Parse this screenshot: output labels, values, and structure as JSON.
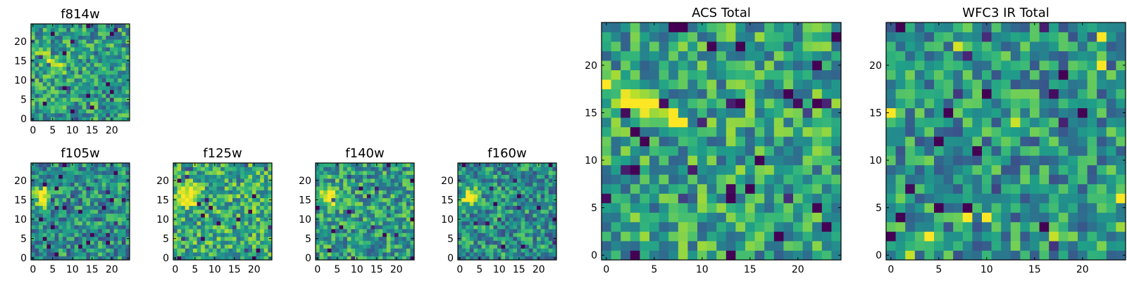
{
  "figure": {
    "title": ""
  },
  "chart_data": [
    {
      "type": "heatmap",
      "title": "f814w",
      "size": 25,
      "seed": 11,
      "xticks": [
        0,
        5,
        10,
        15,
        20
      ],
      "yticks": [
        0,
        5,
        10,
        15,
        20
      ],
      "xlim": [
        0,
        25
      ],
      "ylim": [
        0,
        25
      ],
      "grid": false,
      "legend": "none",
      "colormap": "viridis",
      "feature": "diagonal-streak",
      "base_level": 0.55
    },
    {
      "type": "heatmap",
      "title": "f105w",
      "size": 25,
      "seed": 23,
      "xticks": [
        0,
        5,
        10,
        15,
        20
      ],
      "yticks": [
        0,
        5,
        10,
        15,
        20
      ],
      "xlim": [
        0,
        25
      ],
      "ylim": [
        0,
        25
      ],
      "grid": false,
      "legend": "none",
      "colormap": "viridis",
      "feature": "bright-blob",
      "base_level": 0.5
    },
    {
      "type": "heatmap",
      "title": "f125w",
      "size": 25,
      "seed": 37,
      "xticks": [
        0,
        5,
        10,
        15,
        20
      ],
      "yticks": [
        0,
        5,
        10,
        15,
        20
      ],
      "xlim": [
        0,
        25
      ],
      "ylim": [
        0,
        25
      ],
      "grid": false,
      "legend": "none",
      "colormap": "viridis",
      "feature": "bright-blob",
      "base_level": 0.62
    },
    {
      "type": "heatmap",
      "title": "f140w",
      "size": 25,
      "seed": 41,
      "xticks": [
        0,
        5,
        10,
        15,
        20
      ],
      "yticks": [
        0,
        5,
        10,
        15,
        20
      ],
      "xlim": [
        0,
        25
      ],
      "ylim": [
        0,
        25
      ],
      "grid": false,
      "legend": "none",
      "colormap": "viridis",
      "feature": "bright-blob",
      "base_level": 0.55
    },
    {
      "type": "heatmap",
      "title": "f160w",
      "size": 25,
      "seed": 53,
      "xticks": [
        0,
        5,
        10,
        15,
        20
      ],
      "yticks": [
        0,
        5,
        10,
        15,
        20
      ],
      "xlim": [
        0,
        25
      ],
      "ylim": [
        0,
        25
      ],
      "grid": false,
      "legend": "none",
      "colormap": "viridis",
      "feature": "bright-blob",
      "base_level": 0.5
    },
    {
      "type": "heatmap",
      "title": "ACS Total",
      "size": 25,
      "seed": 67,
      "xticks": [
        0,
        5,
        10,
        15,
        20
      ],
      "yticks": [
        0,
        5,
        10,
        15,
        20
      ],
      "xlim": [
        0,
        25
      ],
      "ylim": [
        0,
        25
      ],
      "grid": false,
      "legend": "none",
      "colormap": "viridis",
      "feature": "diagonal-streak",
      "base_level": 0.58
    },
    {
      "type": "heatmap",
      "title": "WFC3 IR Total",
      "size": 25,
      "seed": 79,
      "xticks": [
        0,
        5,
        10,
        15,
        20
      ],
      "yticks": [
        0,
        5,
        10,
        15,
        20
      ],
      "xlim": [
        0,
        25
      ],
      "ylim": [
        0,
        25
      ],
      "grid": false,
      "legend": "none",
      "colormap": "viridis",
      "feature": "scattered-bright",
      "base_level": 0.52
    }
  ]
}
